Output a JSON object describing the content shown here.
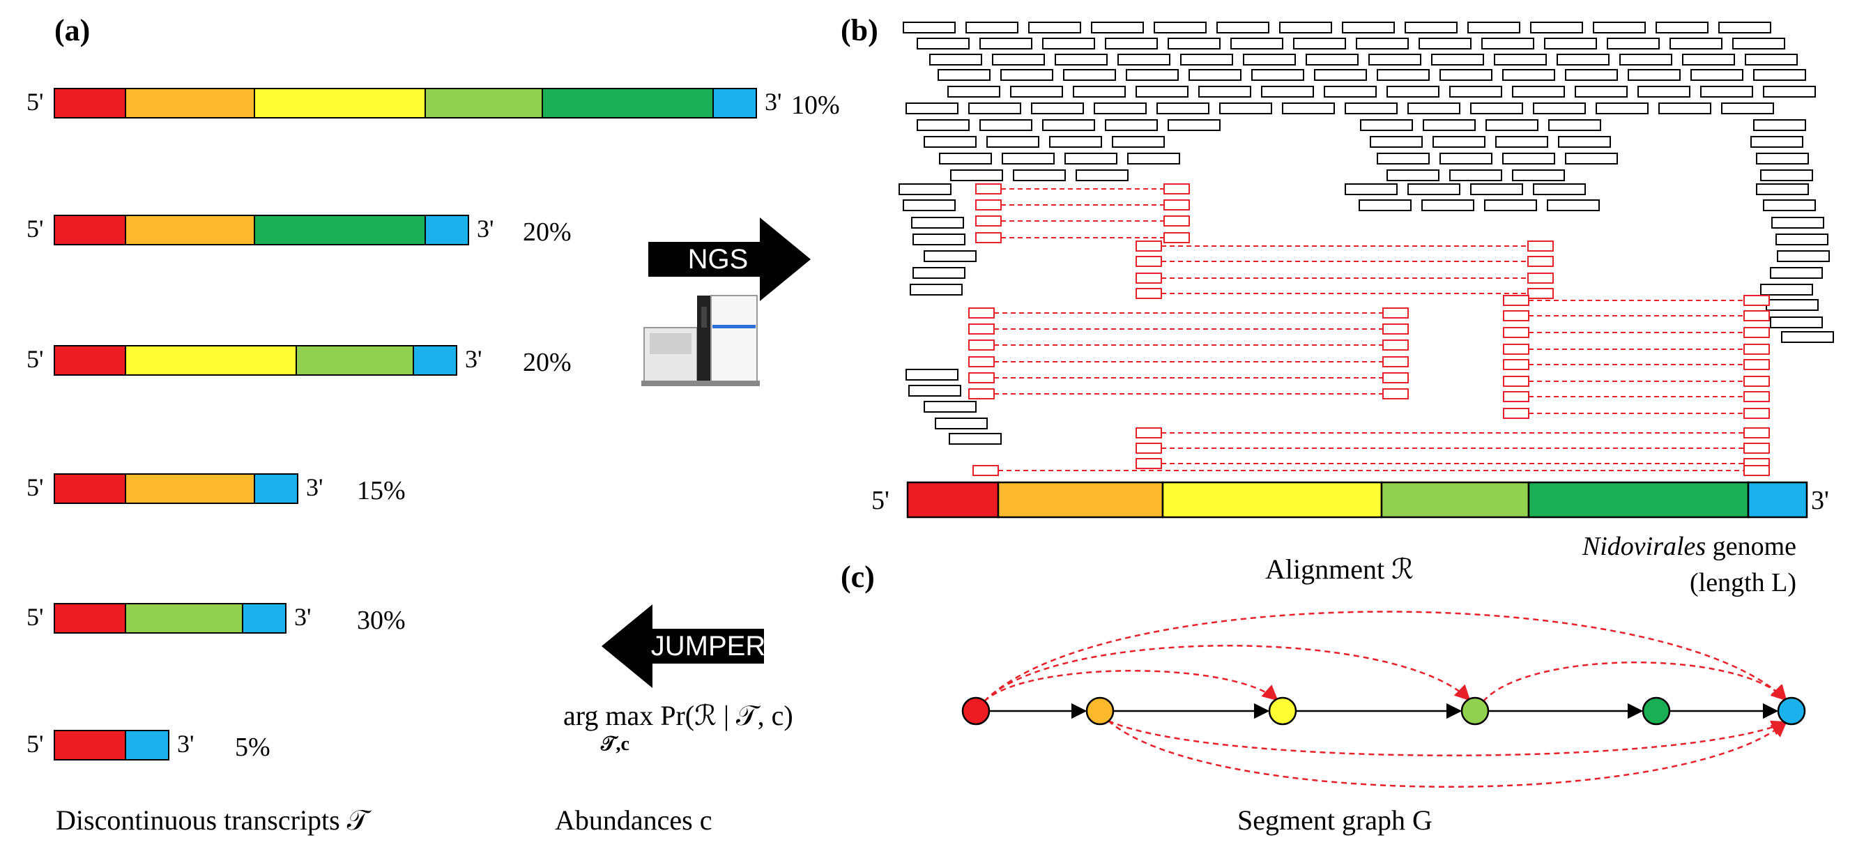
{
  "colors": {
    "red": "#ed1c24",
    "orange": "#fbb92b",
    "yellow": "#ffff33",
    "lightgreen": "#92d050",
    "darkgreen": "#1aaf54",
    "blue": "#1bb1ec",
    "read_red": "#e8202a",
    "black": "#000000"
  },
  "panel_a": {
    "label": "(a)",
    "caption": "Discontinuous transcripts 𝒯",
    "five_prime": "5'",
    "three_prime": "3'",
    "transcripts": [
      {
        "abundance": "10%",
        "segments": [
          "red",
          "orange",
          "yellow",
          "lightgreen",
          "darkgreen",
          "blue"
        ]
      },
      {
        "abundance": "20%",
        "segments": [
          "red",
          "orange",
          "darkgreen",
          "blue"
        ]
      },
      {
        "abundance": "20%",
        "segments": [
          "red",
          "yellow",
          "lightgreen",
          "blue"
        ]
      },
      {
        "abundance": "15%",
        "segments": [
          "red",
          "orange",
          "blue"
        ]
      },
      {
        "abundance": "30%",
        "segments": [
          "red",
          "lightgreen",
          "blue"
        ]
      },
      {
        "abundance": "5%",
        "segments": [
          "red",
          "blue"
        ]
      }
    ]
  },
  "middle": {
    "ngs_label": "NGS",
    "jumper_label": "JUMPER",
    "argmax_formula": "arg max Pr(ℛ | 𝒯, c)",
    "argmax_sub": "𝒯,c",
    "abundances_caption": "Abundances c",
    "sequencer_icon": "sequencing-machine-icon"
  },
  "panel_b": {
    "label": "(b)",
    "alignment_caption": "Alignment ℛ",
    "genome_caption_italic": "Nidovirales",
    "genome_caption_rest": " genome",
    "genome_length": "(length L)",
    "five_prime": "5'",
    "three_prime": "3'",
    "genome_segments": [
      "red",
      "orange",
      "yellow",
      "lightgreen",
      "darkgreen",
      "blue"
    ]
  },
  "panel_c": {
    "label": "(c)",
    "caption": "Segment graph G",
    "nodes": [
      "red",
      "orange",
      "yellow",
      "lightgreen",
      "darkgreen",
      "blue"
    ],
    "backbone_edges": [
      [
        0,
        1
      ],
      [
        1,
        2
      ],
      [
        2,
        3
      ],
      [
        3,
        4
      ],
      [
        4,
        5
      ]
    ],
    "discontinuous_edges": [
      [
        0,
        2
      ],
      [
        0,
        3
      ],
      [
        0,
        5
      ],
      [
        1,
        5
      ],
      [
        1,
        5
      ],
      [
        3,
        5
      ]
    ]
  }
}
